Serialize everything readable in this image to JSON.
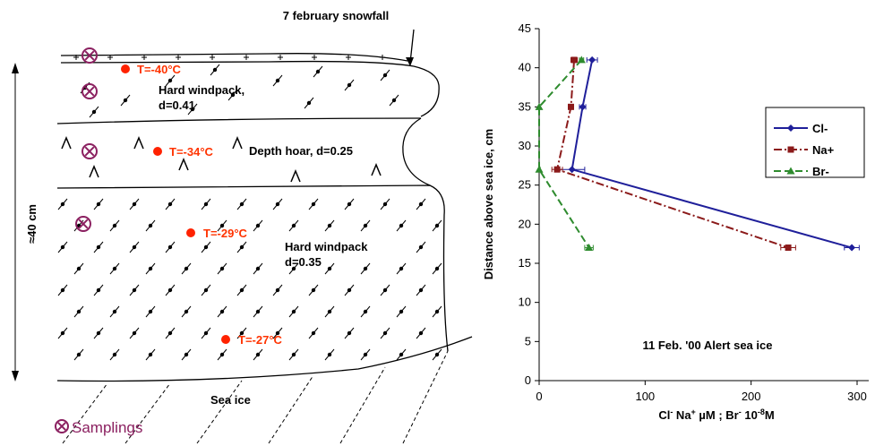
{
  "diagram": {
    "snowfall_label": "7 february snowfall",
    "height_label": "≈40 cm",
    "layers": [
      {
        "name": "Hard windpack,",
        "density": "d=0.41"
      },
      {
        "name": "Depth hoar, d=0.25",
        "density": ""
      },
      {
        "name": "Hard windpack",
        "density": "d=0.35"
      }
    ],
    "temperatures": [
      "T=-40°C",
      "T=-34°C",
      "T=-29°C",
      "T=-27°C"
    ],
    "sea_ice_label": "Sea ice",
    "legend_label": "Samplings",
    "colors": {
      "temperature": "#ff3300",
      "sampling": "#8b2060"
    }
  },
  "chart_data": {
    "type": "line",
    "title": "11 Feb. '00 Alert sea ice",
    "xlabel": "Cl⁻ Na⁺ µM ; Br⁻ 10⁻⁸M",
    "ylabel": "Distance above sea ice, cm",
    "xlim": [
      0,
      300
    ],
    "ylim": [
      0,
      45
    ],
    "xticks": [
      "0",
      "100",
      "200",
      "300"
    ],
    "yticks": [
      "0",
      "5",
      "10",
      "15",
      "20",
      "25",
      "30",
      "35",
      "40",
      "45"
    ],
    "legend_position": "right",
    "series": [
      {
        "name": "Cl-",
        "color": "#1f1f9a",
        "marker": "diamond",
        "dash": "solid",
        "x": [
          50,
          41,
          31,
          295
        ],
        "y": [
          41,
          35,
          27,
          17
        ],
        "err": [
          5,
          3,
          12,
          7
        ]
      },
      {
        "name": "Na+",
        "color": "#8b1a1a",
        "marker": "square",
        "dash": "dashdot",
        "x": [
          33,
          30,
          17,
          235
        ],
        "y": [
          41,
          35,
          27,
          17
        ],
        "err": [
          3,
          2,
          5,
          7
        ]
      },
      {
        "name": "Br-",
        "color": "#2e8b2e",
        "marker": "triangle",
        "dash": "dash",
        "x": [
          40,
          0,
          0,
          47
        ],
        "y": [
          41,
          35,
          27,
          17
        ],
        "err": [
          2,
          1,
          1,
          4
        ]
      }
    ]
  }
}
